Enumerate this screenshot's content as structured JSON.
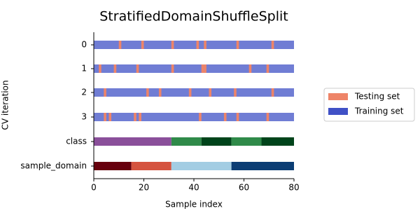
{
  "chart_data": {
    "type": "cv",
    "title": "StratifiedDomainShuffleSplit",
    "xlabel": "Sample index",
    "ylabel": "CV iteration",
    "xlim": [
      0,
      80
    ],
    "xticks": [
      0,
      20,
      40,
      60,
      80
    ],
    "series": [
      {
        "name": "Testing set",
        "color": "#ee8468"
      },
      {
        "name": "Training set",
        "color": "#4051c6"
      }
    ],
    "splits": [
      {
        "label": "0",
        "test": [
          10,
          19,
          31,
          41,
          44,
          57,
          71
        ]
      },
      {
        "label": "1",
        "test": [
          2,
          8,
          17,
          31,
          43,
          44,
          62,
          69
        ]
      },
      {
        "label": "2",
        "test": [
          4,
          21,
          26,
          38,
          46,
          56,
          71
        ]
      },
      {
        "label": "3",
        "test": [
          4,
          6,
          16,
          18,
          42,
          52,
          57,
          69
        ]
      }
    ],
    "groups": [
      {
        "label": "class",
        "edges": [
          0,
          31,
          43,
          55,
          67,
          80
        ],
        "colors": [
          "#8a4f9a",
          "#2f8a49",
          "#00441b",
          "#2f8a49",
          "#00441b"
        ]
      },
      {
        "label": "sample_domain",
        "edges": [
          0,
          15,
          31,
          55,
          80
        ],
        "colors": [
          "#67000d",
          "#d5533f",
          "#a3cde3",
          "#0b3d74"
        ]
      }
    ]
  }
}
